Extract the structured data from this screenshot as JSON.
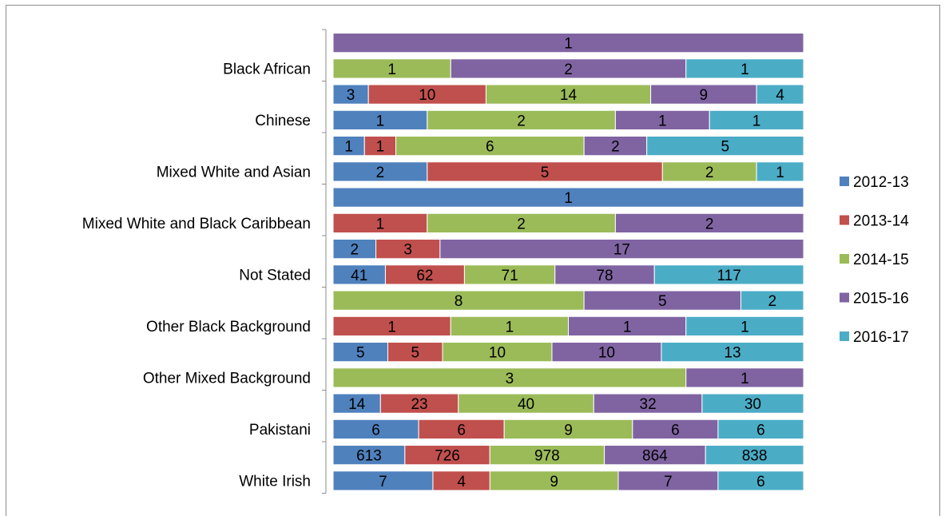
{
  "chart_data": {
    "type": "bar",
    "orientation": "horizontal",
    "stacked": "100%",
    "title": "",
    "xlabel": "",
    "ylabel": "",
    "grid": false,
    "legend_position": "right",
    "series_names": [
      "2012-13",
      "2013-14",
      "2014-15",
      "2015-16",
      "2016-17"
    ],
    "colors": [
      "#4f81bd",
      "#c0504d",
      "#9bbb59",
      "#8064a2",
      "#4bacc6"
    ],
    "categories": [
      "",
      "Black African",
      "",
      "Chinese",
      "",
      "Mixed White and Asian",
      "",
      "Mixed White and Black Caribbean",
      "",
      "Not Stated",
      "",
      "Other Black Background",
      "",
      "Other Mixed Background",
      "",
      "Pakistani",
      "",
      "White Irish"
    ],
    "rows": [
      [
        null,
        null,
        null,
        1,
        null
      ],
      [
        null,
        null,
        1,
        2,
        1
      ],
      [
        3,
        10,
        14,
        9,
        4
      ],
      [
        1,
        null,
        2,
        1,
        1
      ],
      [
        1,
        1,
        6,
        2,
        5
      ],
      [
        2,
        5,
        2,
        null,
        1
      ],
      [
        1,
        null,
        null,
        null,
        null
      ],
      [
        null,
        1,
        2,
        2,
        null
      ],
      [
        2,
        3,
        null,
        17,
        null
      ],
      [
        41,
        62,
        71,
        78,
        117
      ],
      [
        null,
        null,
        8,
        5,
        2
      ],
      [
        null,
        1,
        1,
        1,
        1
      ],
      [
        5,
        5,
        10,
        10,
        13
      ],
      [
        null,
        null,
        3,
        1,
        null
      ],
      [
        14,
        23,
        40,
        32,
        30
      ],
      [
        6,
        6,
        9,
        6,
        6
      ],
      [
        613,
        726,
        978,
        864,
        838
      ],
      [
        7,
        4,
        9,
        7,
        6
      ]
    ]
  }
}
